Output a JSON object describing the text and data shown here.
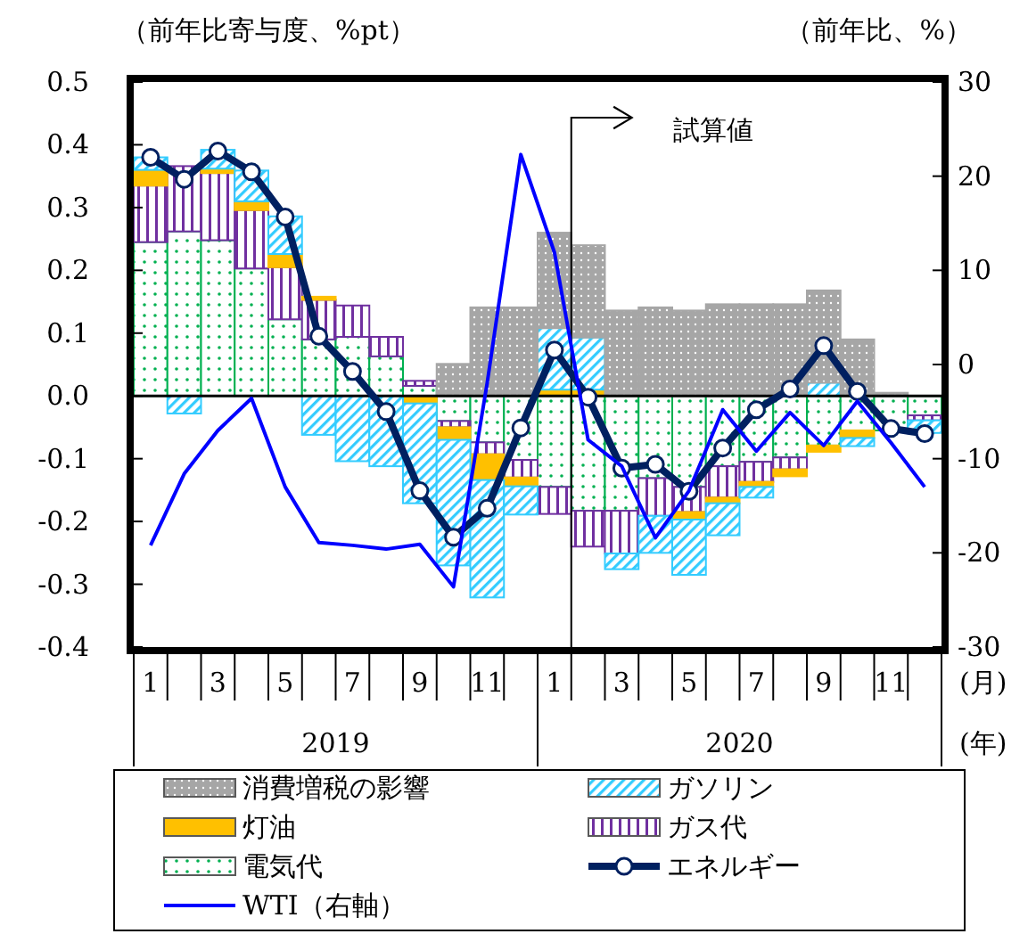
{
  "chart_data": {
    "type": "bar",
    "stacked": true,
    "categories": [
      "1",
      null,
      "3",
      null,
      "5",
      null,
      "7",
      null,
      "9",
      null,
      "11",
      null,
      "1",
      null,
      "3",
      null,
      "5",
      null,
      "7",
      null,
      "9",
      null,
      "11",
      null
    ],
    "xlabel": "(月)",
    "annotations": [
      "2019",
      "2020",
      "(年)",
      "試算値"
    ],
    "ylabel": "（前年比寄与度、%pt）",
    "y2label": "（前年比、%）",
    "ylim": [
      -0.4,
      0.5
    ],
    "yticks": [
      -0.4,
      -0.3,
      -0.2,
      -0.1,
      {
        "value": 0,
        "label": "0.0"
      },
      0.1,
      0.2,
      0.3,
      0.4,
      0.5
    ],
    "y2lim": [
      -30,
      30
    ],
    "y2ticks": [
      -30,
      -20,
      -10,
      0,
      10,
      20,
      30
    ],
    "legend": "bottom",
    "series": [
      {
        "name": "電気代",
        "color": "#00b050",
        "values": [
          0.245,
          0.262,
          0.248,
          0.203,
          0.122,
          0.09,
          0.094,
          0.063,
          0.016,
          -0.04,
          -0.074,
          -0.102,
          -0.145,
          -0.183,
          -0.183,
          -0.131,
          -0.145,
          -0.112,
          -0.105,
          -0.098,
          -0.079,
          -0.055,
          -0.055,
          -0.031
        ]
      },
      {
        "name": "ガス代",
        "color": "#7030a0",
        "values": [
          0.09,
          0.104,
          0.107,
          0.093,
          0.083,
          0.063,
          0.05,
          0.031,
          0.008,
          -0.01,
          -0.019,
          -0.028,
          -0.043,
          -0.057,
          -0.068,
          -0.06,
          -0.04,
          -0.05,
          -0.032,
          -0.019,
          null,
          null,
          null,
          -0.008
        ]
      },
      {
        "name": "灯油",
        "color": "#ffc000",
        "values": [
          0.025,
          null,
          0.007,
          0.014,
          0.021,
          0.005,
          null,
          null,
          -0.012,
          -0.02,
          -0.041,
          -0.014,
          0.01,
          0.01,
          null,
          null,
          -0.012,
          -0.009,
          -0.008,
          -0.011,
          -0.01,
          -0.012,
          null,
          null
        ]
      },
      {
        "name": "ガソリン",
        "color": "#33ccff",
        "values": [
          0.02,
          -0.028,
          0.03,
          0.049,
          0.06,
          -0.062,
          -0.104,
          -0.112,
          -0.159,
          -0.2,
          -0.187,
          -0.045,
          0.098,
          0.083,
          -0.025,
          -0.059,
          -0.088,
          -0.051,
          -0.017,
          null,
          0.021,
          -0.013,
          null,
          -0.02
        ]
      },
      {
        "name": "消費増税の影響",
        "color": "#a6a6a6",
        "values": [
          null,
          null,
          null,
          null,
          null,
          null,
          null,
          null,
          null,
          0.051,
          0.141,
          0.141,
          0.152,
          0.147,
          0.136,
          0.141,
          0.136,
          0.146,
          0.146,
          0.146,
          0.147,
          0.09,
          0.005,
          null
        ]
      },
      {
        "name": "エネルギー",
        "type": "line",
        "color": "#002060",
        "marker": "circle",
        "values": [
          0.38,
          0.345,
          0.39,
          0.357,
          0.285,
          0.095,
          0.039,
          -0.025,
          -0.151,
          -0.225,
          -0.179,
          -0.051,
          0.073,
          -0.002,
          -0.115,
          -0.109,
          -0.152,
          -0.083,
          -0.022,
          0.011,
          0.08,
          0.007,
          -0.052,
          -0.06
        ]
      },
      {
        "name": "WTI（右軸）",
        "type": "line",
        "axis": "y2",
        "color": "#0000ff",
        "marker": "none",
        "values": [
          -19.2,
          -11.6,
          -7.0,
          -3.6,
          -13.0,
          -18.9,
          -19.2,
          -19.6,
          -19.1,
          -23.6,
          -2,
          22.3,
          11.9,
          -8.0,
          -10.8,
          -18.4,
          -13.4,
          -4.8,
          -9.2,
          -5.1,
          -8.6,
          -3.9,
          -8.3,
          -13.0
        ]
      }
    ]
  }
}
